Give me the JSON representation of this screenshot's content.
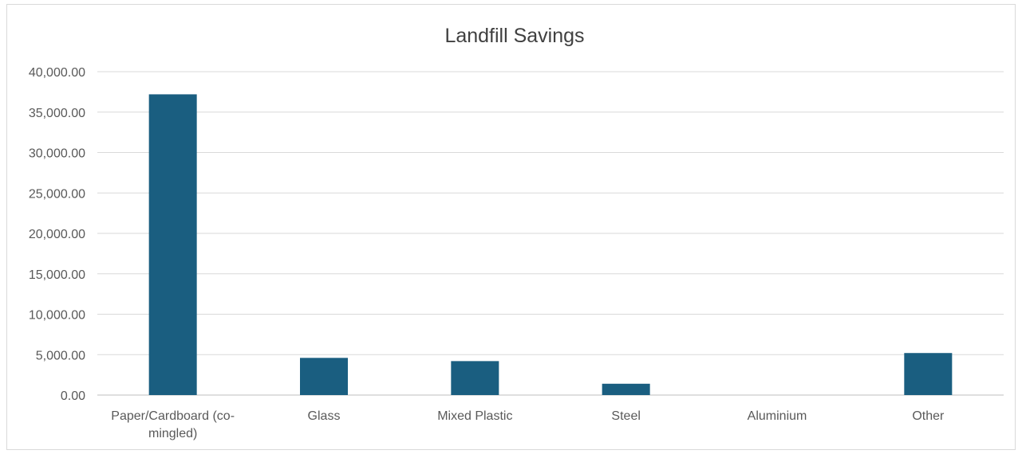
{
  "chart_data": {
    "type": "bar",
    "title": "Landfill Savings",
    "xlabel": "",
    "ylabel": "",
    "categories": [
      [
        "Paper/Cardboard (co-",
        "mingled)"
      ],
      [
        "Glass"
      ],
      [
        "Mixed Plastic"
      ],
      [
        "Steel"
      ],
      [
        "Aluminium"
      ],
      [
        "Other"
      ]
    ],
    "values": [
      37200,
      4600,
      4200,
      1400,
      0,
      5200
    ],
    "ylim": [
      0,
      40000
    ],
    "yticks": [
      "0.00",
      "5,000.00",
      "10,000.00",
      "15,000.00",
      "20,000.00",
      "25,000.00",
      "30,000.00",
      "35,000.00",
      "40,000.00"
    ],
    "grid": true,
    "legend": "none",
    "colors": {
      "bar": "#1a5e80",
      "grid": "#d9d9d9",
      "axis": "#bfbfbf"
    }
  }
}
